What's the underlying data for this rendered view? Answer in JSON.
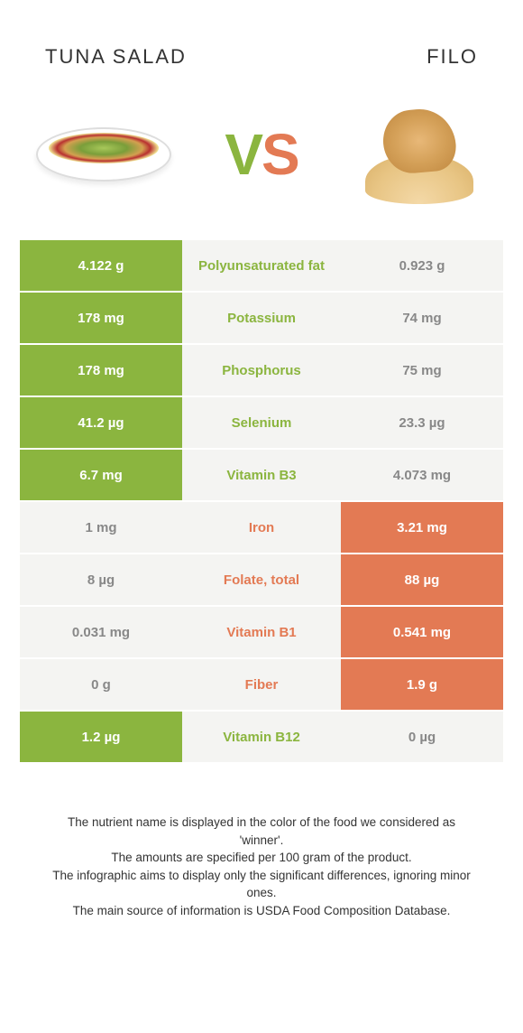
{
  "colors": {
    "green": "#8bb53f",
    "orange": "#e37a54",
    "grey_bg": "#f4f4f2",
    "grey_fg": "#888888",
    "white": "#ffffff",
    "text": "#333333"
  },
  "title_left": "TUNA SALAD",
  "title_right": "FILO",
  "vs_v": "V",
  "vs_s": "S",
  "rows": [
    {
      "left": "4.122 g",
      "label": "Polyunsaturated fat",
      "right": "0.923 g",
      "winner": "left"
    },
    {
      "left": "178 mg",
      "label": "Potassium",
      "right": "74 mg",
      "winner": "left"
    },
    {
      "left": "178 mg",
      "label": "Phosphorus",
      "right": "75 mg",
      "winner": "left"
    },
    {
      "left": "41.2 µg",
      "label": "Selenium",
      "right": "23.3 µg",
      "winner": "left"
    },
    {
      "left": "6.7 mg",
      "label": "Vitamin B3",
      "right": "4.073 mg",
      "winner": "left"
    },
    {
      "left": "1 mg",
      "label": "Iron",
      "right": "3.21 mg",
      "winner": "right"
    },
    {
      "left": "8 µg",
      "label": "Folate, total",
      "right": "88 µg",
      "winner": "right"
    },
    {
      "left": "0.031 mg",
      "label": "Vitamin B1",
      "right": "0.541 mg",
      "winner": "right"
    },
    {
      "left": "0 g",
      "label": "Fiber",
      "right": "1.9 g",
      "winner": "right"
    },
    {
      "left": "1.2 µg",
      "label": "Vitamin B12",
      "right": "0 µg",
      "winner": "left"
    }
  ],
  "footer_lines": [
    "The nutrient name is displayed in the color of the food we considered as 'winner'.",
    "The amounts are specified per 100 gram of the product.",
    "The infographic aims to display only the significant differences, ignoring minor ones.",
    "The main source of information is USDA Food Composition Database."
  ]
}
